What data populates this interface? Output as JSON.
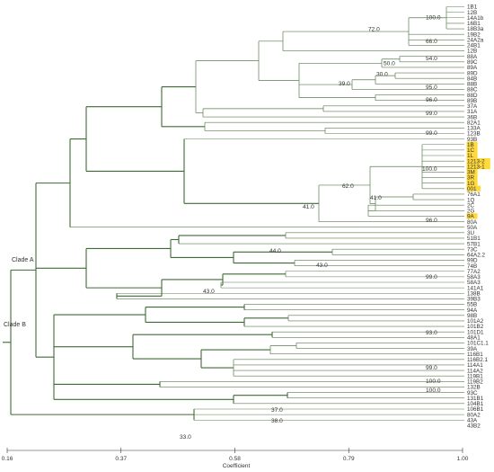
{
  "tree": {
    "leaves": [
      {
        "label": "1B1"
      },
      {
        "label": "12B"
      },
      {
        "label": "14A1b"
      },
      {
        "label": "16B1"
      },
      {
        "label": "18B3a"
      },
      {
        "label": "19B2"
      },
      {
        "label": "24A2a"
      },
      {
        "label": "24B1"
      },
      {
        "label": "12B"
      },
      {
        "label": "88A"
      },
      {
        "label": "89C"
      },
      {
        "label": "89A"
      },
      {
        "label": "89D"
      },
      {
        "label": "84B"
      },
      {
        "label": "88B"
      },
      {
        "label": "88C"
      },
      {
        "label": "88D"
      },
      {
        "label": "89B"
      },
      {
        "label": "37A"
      },
      {
        "label": "31A"
      },
      {
        "label": "36B"
      },
      {
        "label": "82A1"
      },
      {
        "label": "133A"
      },
      {
        "label": "123B"
      },
      {
        "label": "93B"
      },
      {
        "label": "1B",
        "highlight": true
      },
      {
        "label": "1C",
        "highlight": true
      },
      {
        "label": "1L",
        "highlight": true
      },
      {
        "label": "1213-2",
        "highlight": true
      },
      {
        "label": "1213-1",
        "highlight": true
      },
      {
        "label": "3M",
        "highlight": true
      },
      {
        "label": "3R",
        "highlight": true
      },
      {
        "label": "1G",
        "highlight": true
      },
      {
        "label": "001",
        "highlight": true
      },
      {
        "label": "76A1"
      },
      {
        "label": "1Q"
      },
      {
        "label": "2C"
      },
      {
        "label": "2G"
      },
      {
        "label": "9A",
        "highlight": true
      },
      {
        "label": "80A"
      },
      {
        "label": "50A"
      },
      {
        "label": "3U"
      },
      {
        "label": "51B1"
      },
      {
        "label": "57B1"
      },
      {
        "label": "73C"
      },
      {
        "label": "64A2.2"
      },
      {
        "label": "99D"
      },
      {
        "label": "74B"
      },
      {
        "label": "77A2"
      },
      {
        "label": "58A3"
      },
      {
        "label": "58A3"
      },
      {
        "label": "141A1"
      },
      {
        "label": "138B"
      },
      {
        "label": "39B3"
      },
      {
        "label": "55B"
      },
      {
        "label": "94A"
      },
      {
        "label": "98B"
      },
      {
        "label": "101A2"
      },
      {
        "label": "101B2"
      },
      {
        "label": "101D1"
      },
      {
        "label": "48A1"
      },
      {
        "label": "101C1.1"
      },
      {
        "label": "39A"
      },
      {
        "label": "116B1"
      },
      {
        "label": "116B2.1"
      },
      {
        "label": "114A1"
      },
      {
        "label": "114A2"
      },
      {
        "label": "119B1"
      },
      {
        "label": "119B2"
      },
      {
        "label": "132B"
      },
      {
        "label": "93C"
      },
      {
        "label": "131B1"
      },
      {
        "label": "104B1"
      },
      {
        "label": "106B1"
      },
      {
        "label": "80A2"
      },
      {
        "label": "43A"
      },
      {
        "label": "43B2"
      }
    ],
    "bootstrap_labels": [
      {
        "text": "100.0"
      },
      {
        "text": "72.0"
      },
      {
        "text": "66.0"
      },
      {
        "text": "54.0"
      },
      {
        "text": "50.0"
      },
      {
        "text": "30.0"
      },
      {
        "text": "95.0"
      },
      {
        "text": "39.0"
      },
      {
        "text": "96.0"
      },
      {
        "text": "99.0"
      },
      {
        "text": "99.0"
      },
      {
        "text": "100.0"
      },
      {
        "text": "62.0"
      },
      {
        "text": "41.0"
      },
      {
        "text": "41.0"
      },
      {
        "text": "96.0"
      },
      {
        "text": "44.0"
      },
      {
        "text": "43.0"
      },
      {
        "text": "99.0"
      },
      {
        "text": "43.0"
      },
      {
        "text": "93.0"
      },
      {
        "text": "99.0"
      },
      {
        "text": "100.0"
      },
      {
        "text": "100.0"
      },
      {
        "text": "37.0"
      },
      {
        "text": "38.0"
      },
      {
        "text": "33.0"
      }
    ],
    "clade_labels": [
      {
        "text": "Clade A"
      },
      {
        "text": "Clade B"
      }
    ]
  },
  "axis": {
    "label": "Coefficient",
    "range": [
      0.16,
      1.0
    ],
    "ticks": [
      "0.16",
      "0.37",
      "0.58",
      "0.79",
      "1.00"
    ]
  },
  "colors": {
    "branch": "#5a7d4e",
    "branch_dark": "#3f6a36",
    "highlight": "#ffd83a",
    "text": "#333333"
  }
}
